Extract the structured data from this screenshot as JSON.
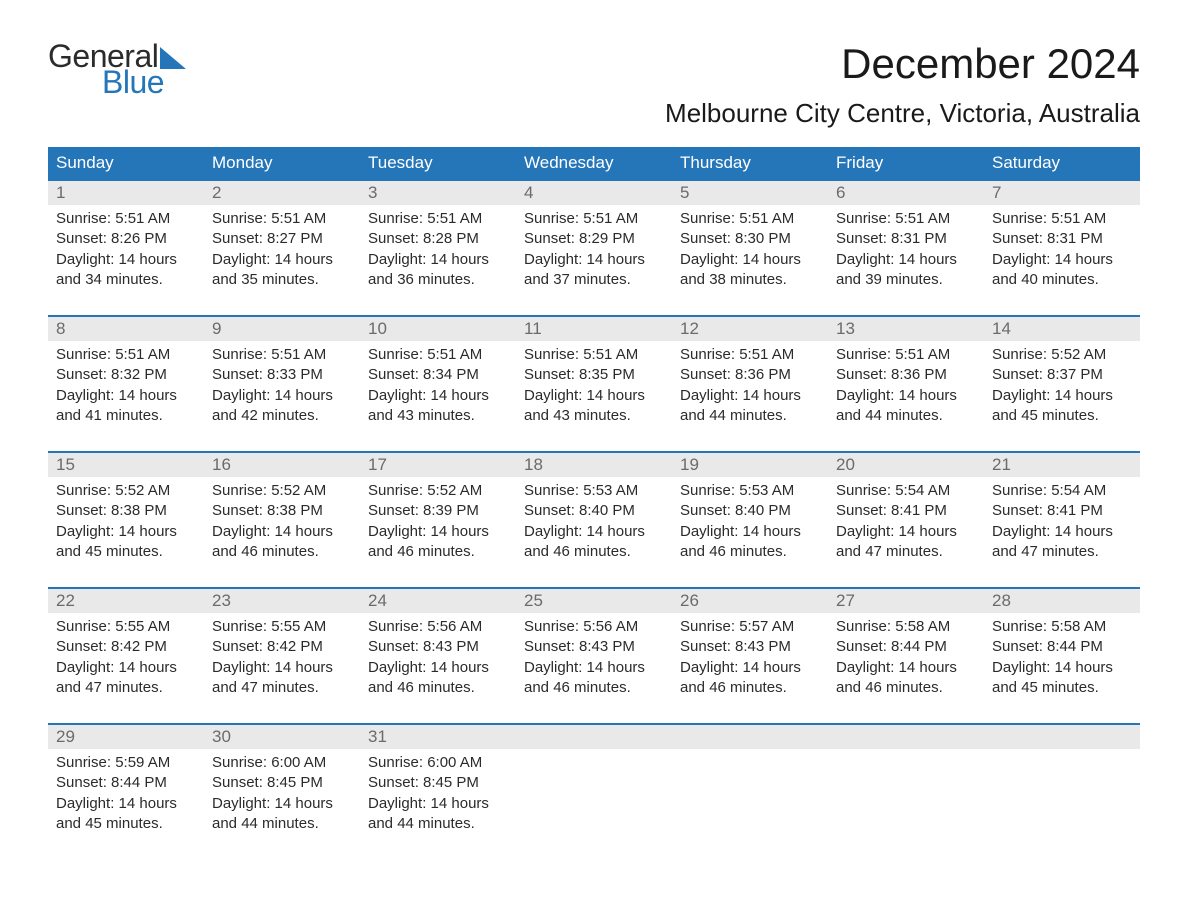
{
  "brand": {
    "part1": "General",
    "part2": "Blue"
  },
  "title": "December 2024",
  "location": "Melbourne City Centre, Victoria, Australia",
  "colors": {
    "header_bg": "#2576b9",
    "header_text": "#ffffff",
    "daynum_bg": "#e9e9e9",
    "daynum_text": "#6b6b6b",
    "body_text": "#2b2b2b",
    "brand_blue": "#2576b9"
  },
  "typography": {
    "title_fontsize": 42,
    "location_fontsize": 26,
    "dayheader_fontsize": 17,
    "cell_fontsize": 15
  },
  "day_names": [
    "Sunday",
    "Monday",
    "Tuesday",
    "Wednesday",
    "Thursday",
    "Friday",
    "Saturday"
  ],
  "weeks": [
    [
      {
        "n": "1",
        "sunrise": "5:51 AM",
        "sunset": "8:26 PM",
        "daylight": "14 hours and 34 minutes."
      },
      {
        "n": "2",
        "sunrise": "5:51 AM",
        "sunset": "8:27 PM",
        "daylight": "14 hours and 35 minutes."
      },
      {
        "n": "3",
        "sunrise": "5:51 AM",
        "sunset": "8:28 PM",
        "daylight": "14 hours and 36 minutes."
      },
      {
        "n": "4",
        "sunrise": "5:51 AM",
        "sunset": "8:29 PM",
        "daylight": "14 hours and 37 minutes."
      },
      {
        "n": "5",
        "sunrise": "5:51 AM",
        "sunset": "8:30 PM",
        "daylight": "14 hours and 38 minutes."
      },
      {
        "n": "6",
        "sunrise": "5:51 AM",
        "sunset": "8:31 PM",
        "daylight": "14 hours and 39 minutes."
      },
      {
        "n": "7",
        "sunrise": "5:51 AM",
        "sunset": "8:31 PM",
        "daylight": "14 hours and 40 minutes."
      }
    ],
    [
      {
        "n": "8",
        "sunrise": "5:51 AM",
        "sunset": "8:32 PM",
        "daylight": "14 hours and 41 minutes."
      },
      {
        "n": "9",
        "sunrise": "5:51 AM",
        "sunset": "8:33 PM",
        "daylight": "14 hours and 42 minutes."
      },
      {
        "n": "10",
        "sunrise": "5:51 AM",
        "sunset": "8:34 PM",
        "daylight": "14 hours and 43 minutes."
      },
      {
        "n": "11",
        "sunrise": "5:51 AM",
        "sunset": "8:35 PM",
        "daylight": "14 hours and 43 minutes."
      },
      {
        "n": "12",
        "sunrise": "5:51 AM",
        "sunset": "8:36 PM",
        "daylight": "14 hours and 44 minutes."
      },
      {
        "n": "13",
        "sunrise": "5:51 AM",
        "sunset": "8:36 PM",
        "daylight": "14 hours and 44 minutes."
      },
      {
        "n": "14",
        "sunrise": "5:52 AM",
        "sunset": "8:37 PM",
        "daylight": "14 hours and 45 minutes."
      }
    ],
    [
      {
        "n": "15",
        "sunrise": "5:52 AM",
        "sunset": "8:38 PM",
        "daylight": "14 hours and 45 minutes."
      },
      {
        "n": "16",
        "sunrise": "5:52 AM",
        "sunset": "8:38 PM",
        "daylight": "14 hours and 46 minutes."
      },
      {
        "n": "17",
        "sunrise": "5:52 AM",
        "sunset": "8:39 PM",
        "daylight": "14 hours and 46 minutes."
      },
      {
        "n": "18",
        "sunrise": "5:53 AM",
        "sunset": "8:40 PM",
        "daylight": "14 hours and 46 minutes."
      },
      {
        "n": "19",
        "sunrise": "5:53 AM",
        "sunset": "8:40 PM",
        "daylight": "14 hours and 46 minutes."
      },
      {
        "n": "20",
        "sunrise": "5:54 AM",
        "sunset": "8:41 PM",
        "daylight": "14 hours and 47 minutes."
      },
      {
        "n": "21",
        "sunrise": "5:54 AM",
        "sunset": "8:41 PM",
        "daylight": "14 hours and 47 minutes."
      }
    ],
    [
      {
        "n": "22",
        "sunrise": "5:55 AM",
        "sunset": "8:42 PM",
        "daylight": "14 hours and 47 minutes."
      },
      {
        "n": "23",
        "sunrise": "5:55 AM",
        "sunset": "8:42 PM",
        "daylight": "14 hours and 47 minutes."
      },
      {
        "n": "24",
        "sunrise": "5:56 AM",
        "sunset": "8:43 PM",
        "daylight": "14 hours and 46 minutes."
      },
      {
        "n": "25",
        "sunrise": "5:56 AM",
        "sunset": "8:43 PM",
        "daylight": "14 hours and 46 minutes."
      },
      {
        "n": "26",
        "sunrise": "5:57 AM",
        "sunset": "8:43 PM",
        "daylight": "14 hours and 46 minutes."
      },
      {
        "n": "27",
        "sunrise": "5:58 AM",
        "sunset": "8:44 PM",
        "daylight": "14 hours and 46 minutes."
      },
      {
        "n": "28",
        "sunrise": "5:58 AM",
        "sunset": "8:44 PM",
        "daylight": "14 hours and 45 minutes."
      }
    ],
    [
      {
        "n": "29",
        "sunrise": "5:59 AM",
        "sunset": "8:44 PM",
        "daylight": "14 hours and 45 minutes."
      },
      {
        "n": "30",
        "sunrise": "6:00 AM",
        "sunset": "8:45 PM",
        "daylight": "14 hours and 44 minutes."
      },
      {
        "n": "31",
        "sunrise": "6:00 AM",
        "sunset": "8:45 PM",
        "daylight": "14 hours and 44 minutes."
      },
      null,
      null,
      null,
      null
    ]
  ],
  "labels": {
    "sunrise_prefix": "Sunrise: ",
    "sunset_prefix": "Sunset: ",
    "daylight_prefix": "Daylight: "
  }
}
